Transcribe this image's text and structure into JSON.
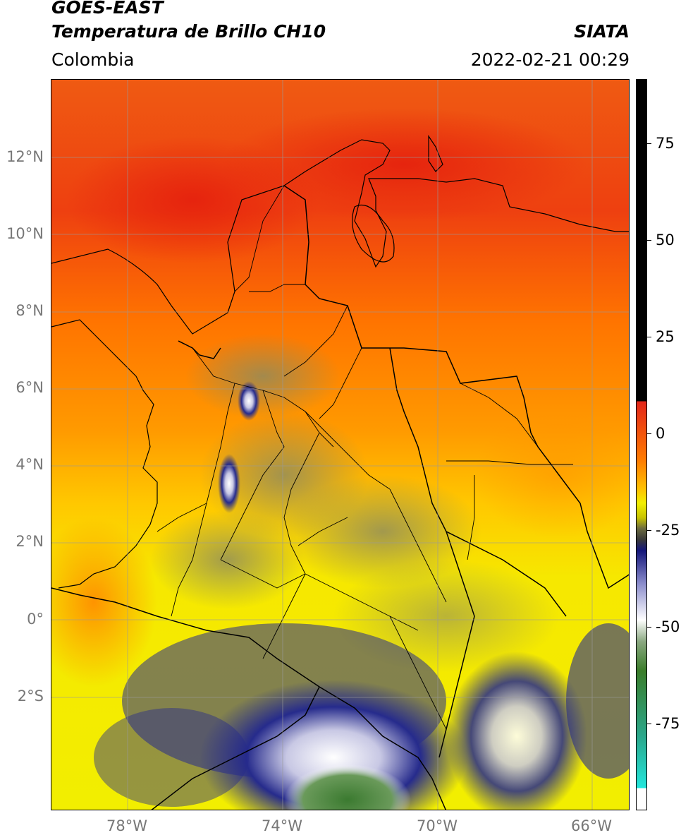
{
  "header": {
    "satellite": "GOES-EAST",
    "product": "Temperatura de Brillo CH10",
    "region": "Colombia",
    "agency": "SIATA",
    "datetime": "2022-02-21 00:29"
  },
  "axes": {
    "lat_labels": [
      "12°N",
      "10°N",
      "8°N",
      "6°N",
      "4°N",
      "2°N",
      "0°",
      "2°S"
    ],
    "lon_labels": [
      "78°W",
      "74°W",
      "70°W",
      "66°W"
    ]
  },
  "colorbar": {
    "labels": [
      "75",
      "50",
      "25",
      "0",
      "-25",
      "-50",
      "-75"
    ],
    "segments": [
      {
        "color": "#000000"
      },
      {
        "color": "#e3261a"
      },
      {
        "color": "#ff7a00"
      },
      {
        "color": "#ffd000"
      },
      {
        "color": "#f2ef00"
      },
      {
        "color": "#8a8a52"
      },
      {
        "color": "#1b1e8a"
      },
      {
        "color": "#ffffff"
      },
      {
        "color": "#3a7d2a"
      },
      {
        "color": "#22d6c0"
      }
    ]
  },
  "palette": {
    "ocean_top": "#ef4a10",
    "ocean_mid": "#ff8a00",
    "land_warm": "#f3ee00",
    "cloud_gray": "#8c8a60",
    "cloud_cold": "#1f2484",
    "cloud_white": "#f4f4f8",
    "cloud_green": "#3b7a30",
    "grid": "#9a9a9a",
    "border": "#000000"
  },
  "map_layers": [
    "coastline",
    "country-borders",
    "department-borders",
    "graticule"
  ]
}
